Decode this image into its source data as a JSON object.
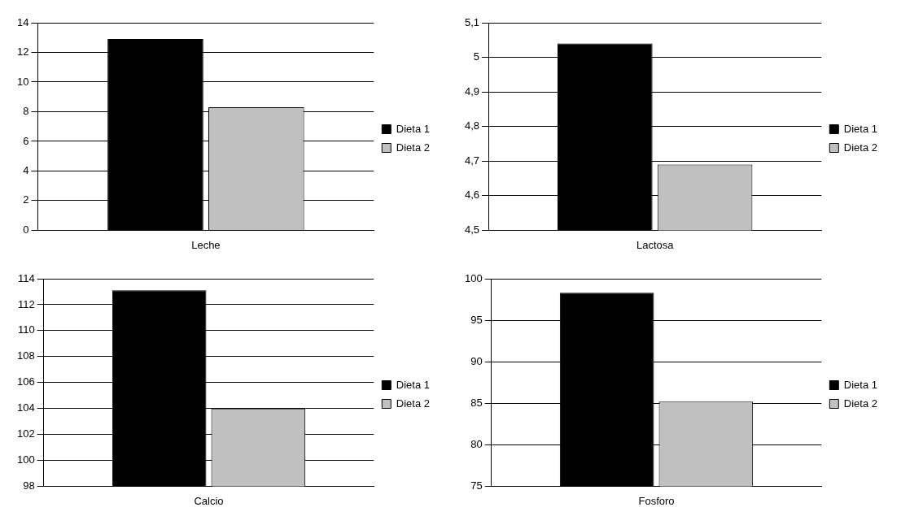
{
  "chart_data": [
    {
      "type": "bar",
      "categories": [
        "Leche"
      ],
      "series": [
        {
          "name": "Dieta 1",
          "color": "#000000",
          "values": [
            12.9
          ]
        },
        {
          "name": "Dieta 2",
          "color": "#c0c0c0",
          "values": [
            8.3
          ]
        }
      ],
      "ylim": [
        0,
        14
      ],
      "yticks": [
        0,
        2,
        4,
        6,
        8,
        10,
        12,
        14
      ],
      "grid": "y",
      "legend": "right"
    },
    {
      "type": "bar",
      "categories": [
        "Lactosa"
      ],
      "series": [
        {
          "name": "Dieta 1",
          "color": "#000000",
          "values": [
            5.04
          ]
        },
        {
          "name": "Dieta 2",
          "color": "#c0c0c0",
          "values": [
            4.69
          ]
        }
      ],
      "ylim": [
        4.5,
        5.1
      ],
      "yticks": [
        {
          "value": 4.5,
          "label": "4,5"
        },
        {
          "value": 4.6,
          "label": "4,6"
        },
        {
          "value": 4.7,
          "label": "4,7"
        },
        {
          "value": 4.8,
          "label": "4,8"
        },
        {
          "value": 4.9,
          "label": "4,9"
        },
        {
          "value": 5,
          "label": "5"
        },
        {
          "value": 5.1,
          "label": "5,1"
        }
      ],
      "grid": "y",
      "legend": "right"
    },
    {
      "type": "bar",
      "categories": [
        "Calcio"
      ],
      "series": [
        {
          "name": "Dieta 1",
          "color": "#000000",
          "values": [
            113.1
          ]
        },
        {
          "name": "Dieta 2",
          "color": "#c0c0c0",
          "values": [
            104
          ]
        }
      ],
      "ylim": [
        98,
        114
      ],
      "yticks": [
        98,
        100,
        102,
        104,
        106,
        108,
        110,
        112,
        114
      ],
      "grid": "y",
      "legend": "right"
    },
    {
      "type": "bar",
      "categories": [
        "Fosforo"
      ],
      "series": [
        {
          "name": "Dieta 1",
          "color": "#000000",
          "values": [
            98.3
          ]
        },
        {
          "name": "Dieta 2",
          "color": "#c0c0c0",
          "values": [
            85.2
          ]
        }
      ],
      "ylim": [
        75,
        100
      ],
      "yticks": [
        75,
        80,
        85,
        90,
        95,
        100
      ],
      "grid": "y",
      "legend": "right"
    }
  ]
}
